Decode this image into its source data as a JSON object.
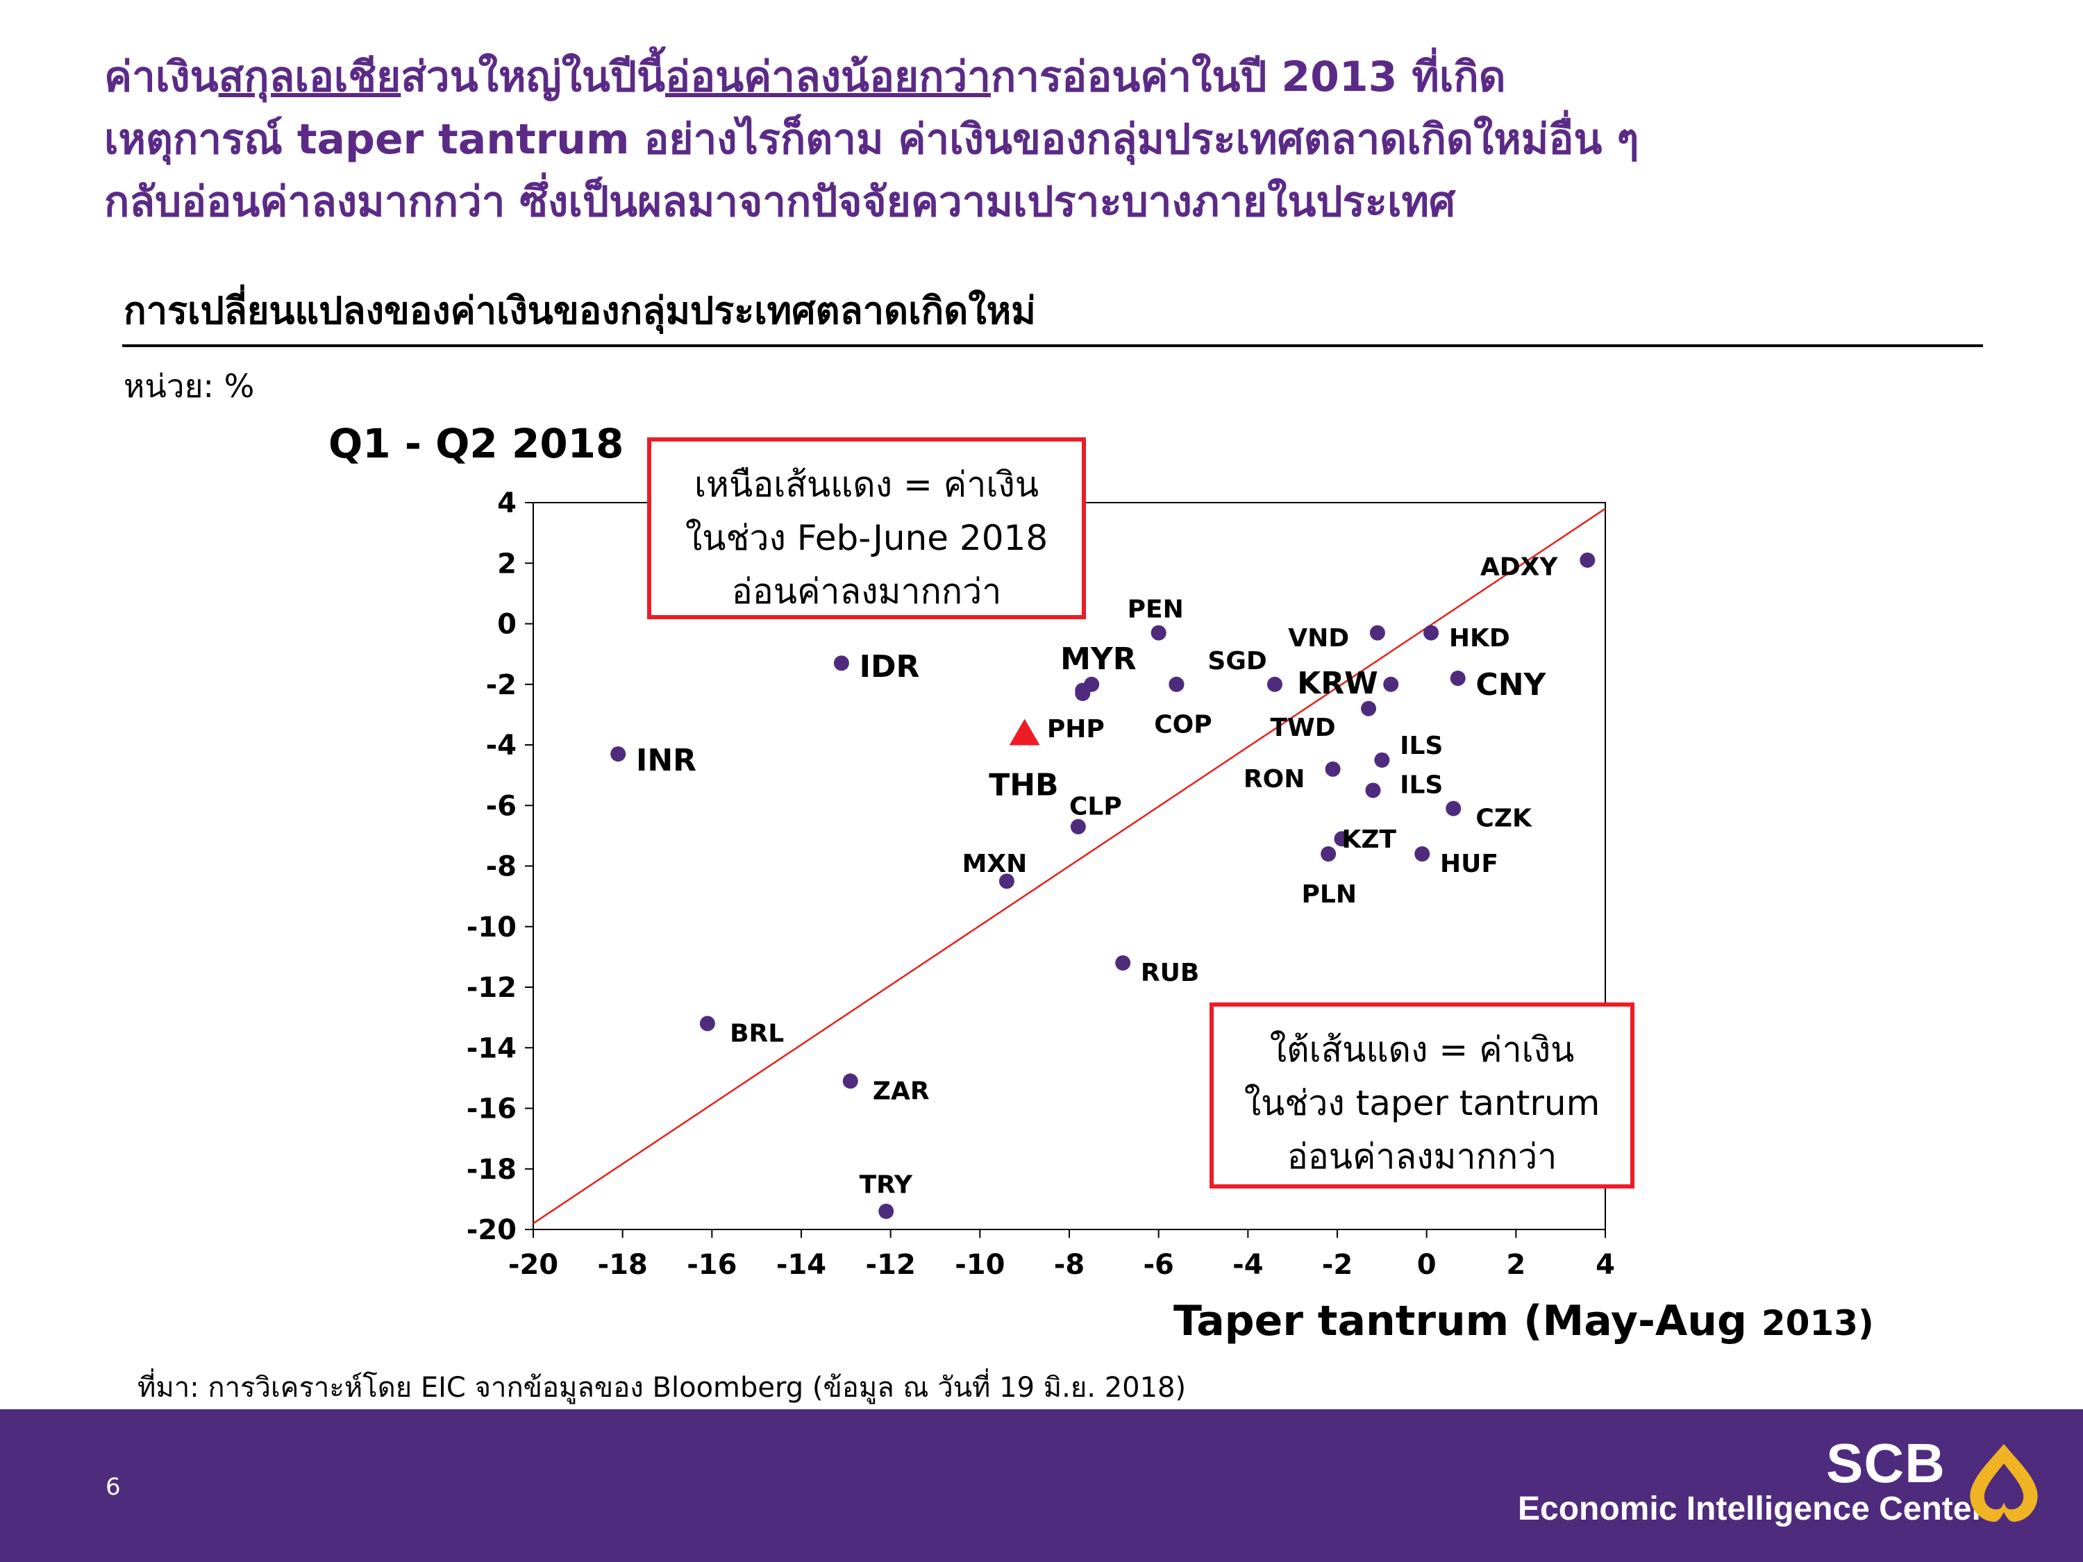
{
  "headline": {
    "line1": [
      {
        "text": "ค่าเงิน",
        "u": false
      },
      {
        "text": "สกุลเอเชีย",
        "u": true
      },
      {
        "text": "ส่วนใหญ่ในปีนี้",
        "u": false
      },
      {
        "text": "อ่อนค่าลงน้อยกว่า",
        "u": true
      },
      {
        "text": "การอ่อนค่าในปี 2013 ที่เกิด",
        "u": false
      }
    ],
    "line2": "เหตุการณ์ taper tantrum อย่างไรก็ตาม ค่าเงินของกลุ่มประเทศตลาดเกิดใหม่อื่น ๆ",
    "line3": "กลับอ่อนค่าลงมากกว่า ซึ่งเป็นผลมาจากปัจจัยความเปราะบางภายในประเทศ"
  },
  "chart_title": "การเปลี่ยนแปลงของค่าเงินของกลุ่มประเทศตลาดเกิดใหม่",
  "unit": "หน่วย: %",
  "source": "ที่มา: การวิเคราะห์โดย EIC จากข้อมูลของ Bloomberg (ข้อมูล ณ วันที่ 19 มิ.ย. 2018)",
  "page_number": "6",
  "brand": {
    "name": "SCB",
    "subtitle": "Economic Intelligence Center"
  },
  "notes": {
    "above": [
      "เหนือเส้นแดง = ค่าเงิน",
      "ในช่วง Feb-June 2018",
      "อ่อนค่าลงมากกว่า"
    ],
    "below": [
      "ใต้เส้นแดง = ค่าเงิน",
      "ในช่วง taper tantrum",
      "อ่อนค่าลงมากกว่า"
    ]
  },
  "colors": {
    "headline": "#5b2a86",
    "point": "#4f2b7e",
    "highlight": "#ee1c25",
    "diagonal": "#e8221b",
    "footer": "#4f2b7e"
  },
  "chart_data": {
    "type": "scatter",
    "ylabel": "Q1 - Q2 2018",
    "xlabel_main": "Taper tantrum (May-Aug",
    "xlabel_year": "2013)",
    "xlim": [
      -20,
      4
    ],
    "ylim": [
      -20,
      4
    ],
    "xticks": [
      -20,
      -18,
      -16,
      -14,
      -12,
      -10,
      -8,
      -6,
      -4,
      -2,
      0,
      2,
      4
    ],
    "yticks": [
      4,
      2,
      0,
      -2,
      -4,
      -6,
      -8,
      -10,
      -12,
      -14,
      -16,
      -18,
      -20
    ],
    "diagonal": {
      "from": [
        -20,
        -19.8
      ],
      "to": [
        4,
        3.8
      ],
      "color": "#e8221b"
    },
    "grid": false,
    "points": [
      {
        "label": "ADXY",
        "x": 3.6,
        "y": 2.1,
        "lx": 1.2,
        "ly": 1.9,
        "big": false
      },
      {
        "label": "PEN",
        "x": -6.0,
        "y": -0.3,
        "lx": -6.7,
        "ly": 0.5,
        "big": false
      },
      {
        "label": "VND",
        "x": -1.1,
        "y": -0.3,
        "lx": -3.1,
        "ly": -0.45,
        "big": false
      },
      {
        "label": "HKD",
        "x": 0.1,
        "y": -0.3,
        "lx": 0.5,
        "ly": -0.45,
        "big": false
      },
      {
        "label": "IDR",
        "x": -13.1,
        "y": -1.3,
        "lx": -12.7,
        "ly": -1.45,
        "big": true
      },
      {
        "label": "MYR",
        "x": -7.5,
        "y": -2.0,
        "lx": -8.2,
        "ly": -1.2,
        "big": true
      },
      {
        "label": "MYR2",
        "x": -7.7,
        "y": -2.2,
        "lx": null,
        "ly": null,
        "big": false
      },
      {
        "label": "SGD",
        "x": -5.6,
        "y": -2.0,
        "lx": -4.9,
        "ly": -1.2,
        "big": false
      },
      {
        "label": "KRW",
        "x": -3.4,
        "y": -2.0,
        "lx": -2.9,
        "ly": -2.0,
        "big": true
      },
      {
        "label": "KRW2",
        "x": -0.8,
        "y": -2.0,
        "lx": null,
        "ly": null,
        "big": false
      },
      {
        "label": "CNY",
        "x": 0.7,
        "y": -1.8,
        "lx": 1.1,
        "ly": -2.05,
        "big": true
      },
      {
        "label": "PHP",
        "x": -7.7,
        "y": -2.3,
        "lx": -8.5,
        "ly": -3.45,
        "big": false
      },
      {
        "label": "COP",
        "x": -5.6,
        "y": -2.0,
        "lx": -6.1,
        "ly": -3.3,
        "big": false
      },
      {
        "label": "TWD",
        "x": -1.3,
        "y": -2.8,
        "lx": -3.5,
        "ly": -3.4,
        "big": false
      },
      {
        "label": "INR",
        "x": -18.1,
        "y": -4.3,
        "lx": -17.7,
        "ly": -4.55,
        "big": true
      },
      {
        "label": "ILS",
        "x": -1.0,
        "y": -4.5,
        "lx": -0.6,
        "ly": -4.0,
        "big": false
      },
      {
        "label": "RON",
        "x": -2.1,
        "y": -4.8,
        "lx": -4.1,
        "ly": -5.1,
        "big": false
      },
      {
        "label": "ILS",
        "x": -1.2,
        "y": -5.5,
        "lx": -0.6,
        "ly": -5.3,
        "big": false
      },
      {
        "label": "CLP",
        "x": -7.8,
        "y": -6.7,
        "lx": -8.0,
        "ly": -6.0,
        "big": false
      },
      {
        "label": "CZK",
        "x": 0.6,
        "y": -6.1,
        "lx": 1.1,
        "ly": -6.4,
        "big": false
      },
      {
        "label": "KZT",
        "x": -1.9,
        "y": -7.1,
        "lx": -1.9,
        "ly": -7.1,
        "big": false
      },
      {
        "label": "HUF",
        "x": -0.1,
        "y": -7.6,
        "lx": 0.3,
        "ly": -7.9,
        "big": false
      },
      {
        "label": "PLN",
        "x": -2.2,
        "y": -7.6,
        "lx": -2.8,
        "ly": -8.9,
        "big": false
      },
      {
        "label": "MXN",
        "x": -9.4,
        "y": -8.5,
        "lx": -10.4,
        "ly": -7.9,
        "big": false
      },
      {
        "label": "RUB",
        "x": -6.8,
        "y": -11.2,
        "lx": -6.4,
        "ly": -11.5,
        "big": false
      },
      {
        "label": "BRL",
        "x": -16.1,
        "y": -13.2,
        "lx": -15.6,
        "ly": -13.5,
        "big": false
      },
      {
        "label": "ZAR",
        "x": -12.9,
        "y": -15.1,
        "lx": -12.4,
        "ly": -15.4,
        "big": false
      },
      {
        "label": "TRY",
        "x": -12.1,
        "y": -19.4,
        "lx": -12.7,
        "ly": -18.5,
        "big": false
      }
    ],
    "highlight": {
      "label": "THB",
      "x": -9.0,
      "y": -3.6,
      "lx": -9.8,
      "ly": -5.3
    }
  }
}
